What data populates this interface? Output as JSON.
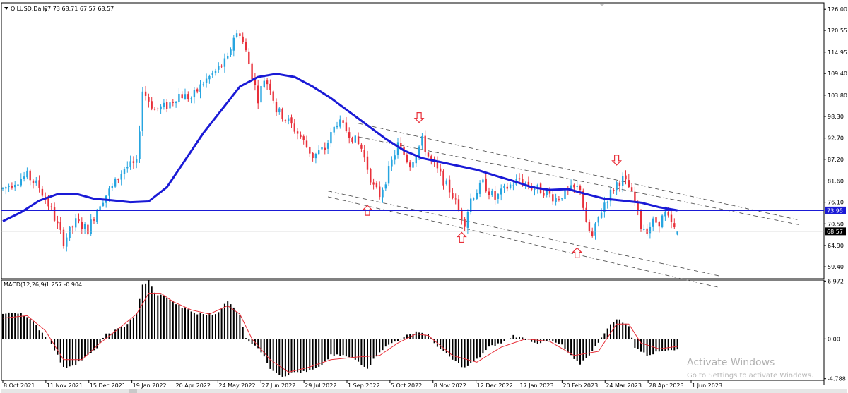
{
  "header": {
    "symbol": "OILUSD,Daily",
    "ohlc": "67.73 68.71 67.57 68.57"
  },
  "macd": {
    "label": "MACD(12,26,9)",
    "values": "-1.257 -0.904"
  },
  "watermark": {
    "line1": "Activate Windows",
    "line2": "Go to Settings to activate Windows."
  },
  "price_badges": {
    "current": "68.57",
    "hline": "73.95"
  },
  "colors": {
    "up": "#26a5e0",
    "down": "#e8303a",
    "ma": "#1a1ad6",
    "hline": "#1a1ad6",
    "macd_hist": "#000000",
    "macd_signal": "#e8303a",
    "arrow": "#e8303a",
    "channel": "#555555"
  },
  "chart_data": [
    {
      "type": "candlestick",
      "symbol": "OILUSD",
      "timeframe": "Daily",
      "x_tick_labels": [
        "8 Oct 2021",
        "11 Nov 2021",
        "15 Dec 2021",
        "19 Jan 2022",
        "20 Apr 2022",
        "24 May 2022",
        "27 Jun 2022",
        "29 Jul 2022",
        "1 Sep 2022",
        "5 Oct 2022",
        "8 Nov 2022",
        "12 Dec 2022",
        "17 Jan 2023",
        "20 Feb 2023",
        "24 Mar 2023",
        "28 Apr 2023",
        "1 Jun 2023"
      ],
      "y_tick_labels": [
        "126.00",
        "120.55",
        "114.95",
        "109.40",
        "103.80",
        "98.30",
        "92.70",
        "87.20",
        "81.60",
        "76.10",
        "70.50",
        "64.90",
        "59.40"
      ],
      "ylim": [
        56.5,
        127.5
      ],
      "grid": false,
      "last_ohlc": {
        "open": 67.73,
        "high": 68.71,
        "low": 67.57,
        "close": 68.57
      },
      "horizontal_line": 73.95,
      "moving_average_path": [
        [
          0,
          71.2
        ],
        [
          6,
          73.5
        ],
        [
          12,
          76.5
        ],
        [
          18,
          78.2
        ],
        [
          24,
          78.3
        ],
        [
          30,
          77
        ],
        [
          36,
          76.6
        ],
        [
          42,
          76.1
        ],
        [
          48,
          76.3
        ],
        [
          54,
          80
        ],
        [
          60,
          87
        ],
        [
          66,
          94
        ],
        [
          72,
          100
        ],
        [
          78,
          106
        ],
        [
          84,
          108.5
        ],
        [
          90,
          109.3
        ],
        [
          96,
          108.5
        ],
        [
          102,
          106
        ],
        [
          108,
          103
        ],
        [
          114,
          99.5
        ],
        [
          120,
          96
        ],
        [
          126,
          92.5
        ],
        [
          132,
          89.5
        ],
        [
          138,
          87.5
        ],
        [
          144,
          86.5
        ],
        [
          150,
          85.5
        ],
        [
          156,
          84.5
        ],
        [
          162,
          83
        ],
        [
          168,
          81.6
        ],
        [
          174,
          80
        ],
        [
          180,
          79.3
        ],
        [
          186,
          79.5
        ],
        [
          192,
          78.2
        ],
        [
          198,
          77
        ],
        [
          204,
          76.5
        ],
        [
          210,
          76
        ],
        [
          216,
          74.8
        ],
        [
          222,
          74
        ]
      ],
      "price_path": [
        [
          0,
          79.5
        ],
        [
          4,
          81.5
        ],
        [
          8,
          83
        ],
        [
          12,
          80
        ],
        [
          16,
          74
        ],
        [
          20,
          66
        ],
        [
          24,
          71
        ],
        [
          28,
          69
        ],
        [
          32,
          76
        ],
        [
          36,
          80
        ],
        [
          40,
          85
        ],
        [
          44,
          86
        ],
        [
          46,
          105
        ],
        [
          50,
          100
        ],
        [
          54,
          101
        ],
        [
          58,
          104
        ],
        [
          62,
          103
        ],
        [
          66,
          107
        ],
        [
          70,
          110
        ],
        [
          74,
          113
        ],
        [
          76,
          119
        ],
        [
          78,
          120
        ],
        [
          80,
          115
        ],
        [
          82,
          109
        ],
        [
          84,
          103
        ],
        [
          86,
          108
        ],
        [
          88,
          106
        ],
        [
          90,
          100
        ],
        [
          94,
          97
        ],
        [
          98,
          93
        ],
        [
          102,
          88
        ],
        [
          106,
          90
        ],
        [
          110,
          97
        ],
        [
          114,
          94
        ],
        [
          118,
          90
        ],
        [
          122,
          80
        ],
        [
          124,
          78
        ],
        [
          126,
          82
        ],
        [
          130,
          91
        ],
        [
          134,
          86
        ],
        [
          138,
          92
        ],
        [
          140,
          88
        ],
        [
          144,
          83
        ],
        [
          148,
          78
        ],
        [
          150,
          74
        ],
        [
          152,
          71
        ],
        [
          154,
          77
        ],
        [
          158,
          81
        ],
        [
          162,
          77
        ],
        [
          166,
          80
        ],
        [
          170,
          82
        ],
        [
          174,
          80
        ],
        [
          178,
          79
        ],
        [
          182,
          77
        ],
        [
          186,
          79
        ],
        [
          190,
          80
        ],
        [
          192,
          70
        ],
        [
          194,
          67
        ],
        [
          196,
          72
        ],
        [
          198,
          76
        ],
        [
          202,
          81
        ],
        [
          204,
          82
        ],
        [
          206,
          80
        ],
        [
          208,
          76
        ],
        [
          210,
          70
        ],
        [
          212,
          69
        ],
        [
          214,
          71
        ],
        [
          216,
          71
        ],
        [
          218,
          73
        ],
        [
          221,
          69
        ],
        [
          222,
          68.57
        ]
      ],
      "channel_lines": [
        {
          "from": [
            117,
            96.5
          ],
          "to": [
            262,
            71.5
          ]
        },
        {
          "from": [
            117,
            93.0
          ],
          "to": [
            262,
            70.3
          ]
        },
        {
          "from": [
            107,
            79.0
          ],
          "to": [
            236,
            57.0
          ]
        },
        {
          "from": [
            107,
            77.5
          ],
          "to": [
            236,
            54.0
          ]
        }
      ],
      "signal_arrows": [
        {
          "index": 120,
          "price": 74,
          "direction": "up"
        },
        {
          "index": 137,
          "price": 98,
          "direction": "down"
        },
        {
          "index": 151,
          "price": 67,
          "direction": "up"
        },
        {
          "index": 189,
          "price": 63,
          "direction": "up"
        },
        {
          "index": 202,
          "price": 87,
          "direction": "down"
        }
      ]
    },
    {
      "type": "bar",
      "name": "MACD(12,26,9)",
      "y_tick_labels": [
        "6.972",
        "0.00",
        "-4.788"
      ],
      "ylim": [
        -4.9,
        7.0
      ],
      "last_values": {
        "macd": -1.257,
        "signal": -0.904
      },
      "histogram_path": [
        [
          0,
          3
        ],
        [
          6,
          3.2
        ],
        [
          10,
          2
        ],
        [
          16,
          -0.5
        ],
        [
          20,
          -3.5
        ],
        [
          24,
          -3
        ],
        [
          30,
          -1.5
        ],
        [
          34,
          0.5
        ],
        [
          40,
          1.5
        ],
        [
          44,
          3
        ],
        [
          46,
          6.5
        ],
        [
          48,
          7
        ],
        [
          50,
          5.5
        ],
        [
          54,
          5
        ],
        [
          58,
          4
        ],
        [
          64,
          3
        ],
        [
          70,
          3
        ],
        [
          74,
          4.5
        ],
        [
          78,
          3
        ],
        [
          80,
          0
        ],
        [
          84,
          -1
        ],
        [
          88,
          -3.5
        ],
        [
          92,
          -4.5
        ],
        [
          96,
          -4
        ],
        [
          100,
          -4
        ],
        [
          104,
          -3.5
        ],
        [
          108,
          -2
        ],
        [
          112,
          -2
        ],
        [
          116,
          -2.5
        ],
        [
          120,
          -3.5
        ],
        [
          124,
          -1.5
        ],
        [
          128,
          -0.5
        ],
        [
          132,
          0.2
        ],
        [
          136,
          0.9
        ],
        [
          140,
          0.5
        ],
        [
          142,
          -0.5
        ],
        [
          148,
          -2.5
        ],
        [
          152,
          -3.5
        ],
        [
          156,
          -2.5
        ],
        [
          160,
          -1
        ],
        [
          164,
          -0.5
        ],
        [
          168,
          0.4
        ],
        [
          172,
          0
        ],
        [
          176,
          -0.5
        ],
        [
          180,
          -0.2
        ],
        [
          184,
          -0.8
        ],
        [
          188,
          -2.5
        ],
        [
          190,
          -3
        ],
        [
          194,
          -1.5
        ],
        [
          198,
          0.8
        ],
        [
          202,
          2.5
        ],
        [
          206,
          1.5
        ],
        [
          208,
          -1
        ],
        [
          212,
          -2
        ],
        [
          216,
          -1.5
        ],
        [
          220,
          -1.2
        ],
        [
          222,
          -1.257
        ]
      ],
      "signal_path": [
        [
          0,
          2.5
        ],
        [
          8,
          2.8
        ],
        [
          14,
          1
        ],
        [
          20,
          -2.5
        ],
        [
          26,
          -2.5
        ],
        [
          32,
          -0.5
        ],
        [
          38,
          1.2
        ],
        [
          44,
          3
        ],
        [
          48,
          5.5
        ],
        [
          52,
          5.5
        ],
        [
          56,
          4.5
        ],
        [
          62,
          3.5
        ],
        [
          68,
          3
        ],
        [
          74,
          4
        ],
        [
          78,
          3
        ],
        [
          82,
          0
        ],
        [
          88,
          -2.5
        ],
        [
          94,
          -4
        ],
        [
          100,
          -3.5
        ],
        [
          108,
          -2.5
        ],
        [
          116,
          -2.2
        ],
        [
          124,
          -2
        ],
        [
          130,
          -0.5
        ],
        [
          136,
          0.6
        ],
        [
          140,
          0.4
        ],
        [
          148,
          -2
        ],
        [
          156,
          -2.8
        ],
        [
          164,
          -1
        ],
        [
          172,
          0
        ],
        [
          180,
          -0.3
        ],
        [
          188,
          -2
        ],
        [
          196,
          -1.5
        ],
        [
          202,
          1.8
        ],
        [
          206,
          1.8
        ],
        [
          210,
          -0.5
        ],
        [
          216,
          -1.2
        ],
        [
          222,
          -0.904
        ]
      ]
    }
  ]
}
